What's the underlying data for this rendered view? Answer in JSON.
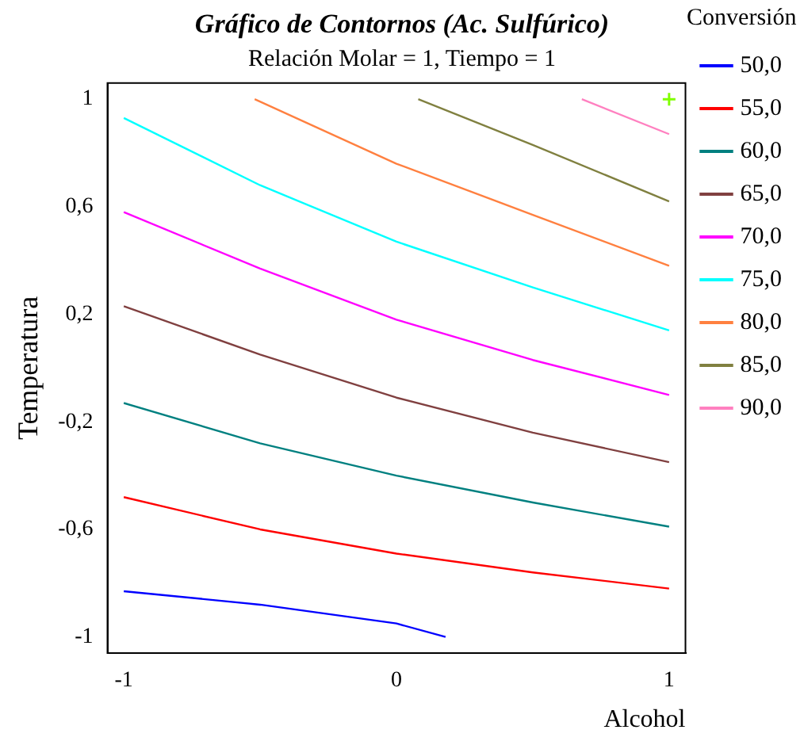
{
  "chart_data": {
    "type": "line",
    "title": "Gráfico de Contornos (Ac. Sulfúrico)",
    "subtitle": "Relación Molar = 1, Tiempo = 1",
    "xlabel": "Alcohol",
    "ylabel": "Temperatura",
    "legend_title": "Conversión",
    "legend": "right",
    "grid": false,
    "marker": "none",
    "line_style": "solid",
    "xlim": [
      -1.06,
      1.06
    ],
    "ylim": [
      -1.06,
      1.06
    ],
    "xticks": [
      -1,
      0,
      1
    ],
    "yticks": [
      {
        "value": -1,
        "label": "-1"
      },
      {
        "value": -0.6,
        "label": "-0,6"
      },
      {
        "value": -0.2,
        "label": "-0,2"
      },
      {
        "value": 0.2,
        "label": "0,2"
      },
      {
        "value": 0.6,
        "label": "0,6"
      },
      {
        "value": 1,
        "label": "1"
      }
    ],
    "series": [
      {
        "name": "50,0",
        "color": "#0000ff",
        "x": [
          -1,
          -0.5,
          0,
          0.18
        ],
        "values": [
          -0.83,
          -0.88,
          -0.95,
          -1
        ]
      },
      {
        "name": "55,0",
        "color": "#ff0000",
        "x": [
          -1,
          -0.5,
          0,
          0.5,
          1
        ],
        "values": [
          -0.48,
          -0.6,
          -0.69,
          -0.76,
          -0.82
        ]
      },
      {
        "name": "60,0",
        "color": "#008080",
        "x": [
          -1,
          -0.5,
          0,
          0.5,
          1
        ],
        "values": [
          -0.13,
          -0.28,
          -0.4,
          -0.5,
          -0.59
        ]
      },
      {
        "name": "65,0",
        "color": "#804040",
        "x": [
          -1,
          -0.5,
          0,
          0.5,
          1
        ],
        "values": [
          0.23,
          0.05,
          -0.11,
          -0.24,
          -0.35
        ]
      },
      {
        "name": "70,0",
        "color": "#ff00ff",
        "x": [
          -1,
          -0.5,
          0,
          0.5,
          1
        ],
        "values": [
          0.58,
          0.37,
          0.18,
          0.03,
          -0.1
        ]
      },
      {
        "name": "75,0",
        "color": "#00ffff",
        "x": [
          -1,
          -0.5,
          0,
          0.5,
          1
        ],
        "values": [
          0.93,
          0.68,
          0.47,
          0.3,
          0.14
        ]
      },
      {
        "name": "80,0",
        "color": "#ff8040",
        "x": [
          -0.52,
          0,
          0.5,
          1
        ],
        "values": [
          1,
          0.76,
          0.57,
          0.38
        ]
      },
      {
        "name": "85,0",
        "color": "#808040",
        "x": [
          0.08,
          0.5,
          1
        ],
        "values": [
          1,
          0.83,
          0.62
        ]
      },
      {
        "name": "90,0",
        "color": "#ff80c0",
        "x": [
          0.68,
          1
        ],
        "values": [
          1,
          0.87
        ]
      },
      {
        "type": "scatter",
        "marker": "cross",
        "color": "#80ff00",
        "x": [
          1
        ],
        "values": [
          1
        ]
      }
    ]
  }
}
